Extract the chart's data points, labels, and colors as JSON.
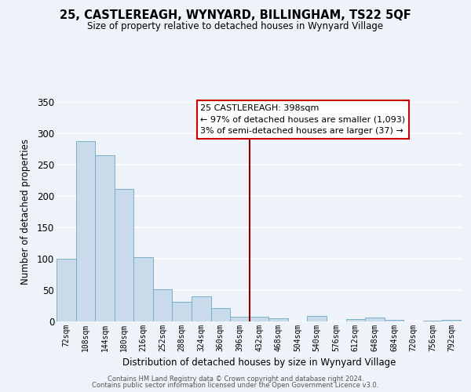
{
  "title": "25, CASTLEREAGH, WYNYARD, BILLINGHAM, TS22 5QF",
  "subtitle": "Size of property relative to detached houses in Wynyard Village",
  "xlabel": "Distribution of detached houses by size in Wynyard Village",
  "ylabel": "Number of detached properties",
  "bin_labels": [
    "72sqm",
    "108sqm",
    "144sqm",
    "180sqm",
    "216sqm",
    "252sqm",
    "288sqm",
    "324sqm",
    "360sqm",
    "396sqm",
    "432sqm",
    "468sqm",
    "504sqm",
    "540sqm",
    "576sqm",
    "612sqm",
    "648sqm",
    "684sqm",
    "720sqm",
    "756sqm",
    "792sqm"
  ],
  "bar_heights": [
    100,
    287,
    265,
    211,
    102,
    51,
    31,
    40,
    21,
    8,
    7,
    5,
    0,
    9,
    0,
    4,
    6,
    3,
    0,
    1,
    3
  ],
  "bar_color": "#c9daea",
  "bar_edge_color": "#7aafc8",
  "bg_color": "#eef2f9",
  "grid_color": "#ffffff",
  "vline_x": 9.5,
  "vline_color": "#8b0000",
  "annotation_title": "25 CASTLEREAGH: 398sqm",
  "annotation_line1": "← 97% of detached houses are smaller (1,093)",
  "annotation_line2": "3% of semi-detached houses are larger (37) →",
  "annotation_box_color": "#ffffff",
  "annotation_border_color": "#cc0000",
  "ylim": [
    0,
    350
  ],
  "yticks": [
    0,
    50,
    100,
    150,
    200,
    250,
    300,
    350
  ],
  "footnote1": "Contains HM Land Registry data © Crown copyright and database right 2024.",
  "footnote2": "Contains public sector information licensed under the Open Government Licence v3.0."
}
